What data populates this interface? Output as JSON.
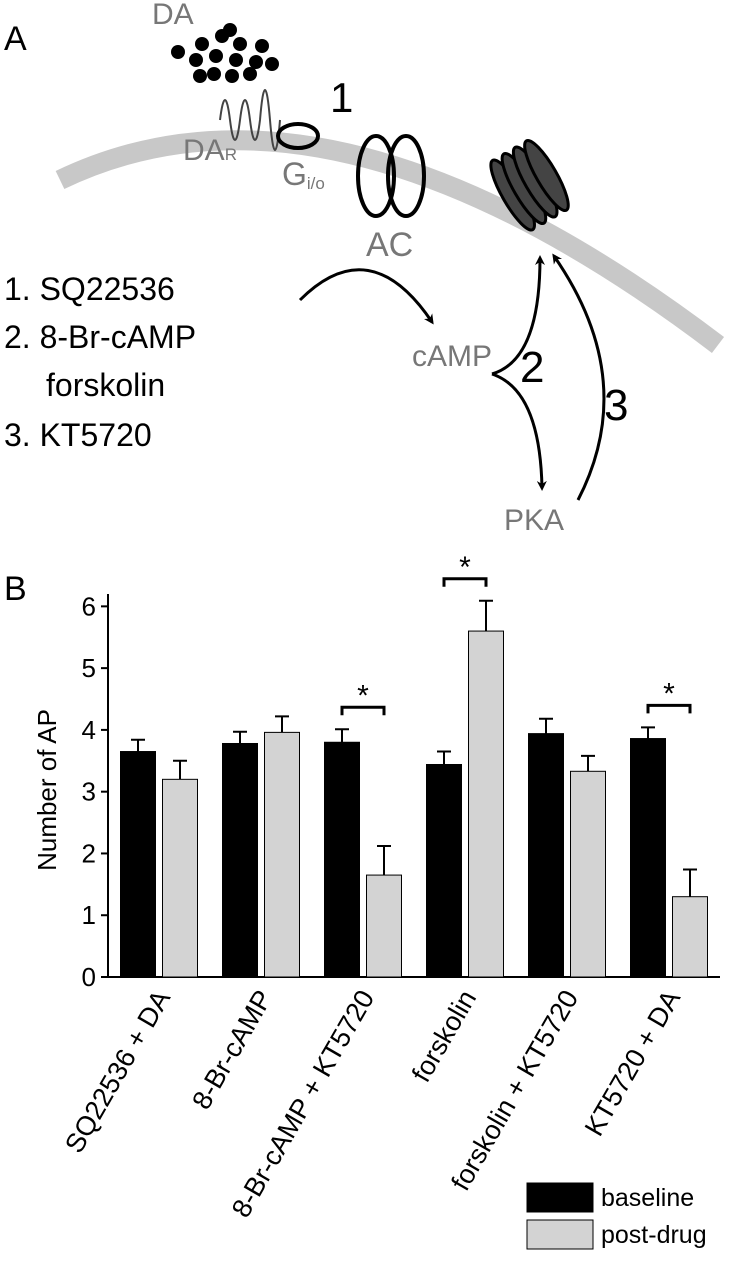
{
  "panel_a": {
    "label": "A",
    "ligand": "DA",
    "receptor": {
      "text": "DA",
      "sub": "R"
    },
    "g_protein": {
      "text": "G",
      "sub": "i/o"
    },
    "enzyme": "AC",
    "messenger": "cAMP",
    "kinase": "PKA",
    "steps": [
      "1",
      "2",
      "3"
    ],
    "legend_lines": [
      "1. SQ22536",
      "2. 8-Br-cAMP",
      "forskolin",
      "3. KT5720"
    ]
  },
  "chart_data": {
    "type": "bar",
    "panel_label": "B",
    "ylabel": "Number of AP",
    "categories": [
      "SQ22536 + DA",
      "8-Br-cAMP",
      "8-Br-cAMP + KT5720",
      "forskolin",
      "forskolin + KT5720",
      "KT5720 + DA"
    ],
    "series": [
      {
        "name": "baseline",
        "color": "#000000",
        "values": [
          3.65,
          3.78,
          3.8,
          3.44,
          3.94,
          3.86
        ],
        "errors": [
          0.19,
          0.19,
          0.21,
          0.21,
          0.24,
          0.18
        ]
      },
      {
        "name": "post-drug",
        "color": "#d3d3d3",
        "values": [
          3.2,
          3.96,
          1.65,
          5.6,
          3.33,
          1.3
        ],
        "errors": [
          0.3,
          0.26,
          0.47,
          0.49,
          0.25,
          0.44
        ]
      }
    ],
    "significance": [
      null,
      null,
      "*",
      "*",
      null,
      "*"
    ],
    "ylim": [
      0,
      6.2
    ],
    "yticks": [
      0,
      1,
      2,
      3,
      4,
      5,
      6
    ],
    "grid": false,
    "legend": "bottom-right"
  }
}
